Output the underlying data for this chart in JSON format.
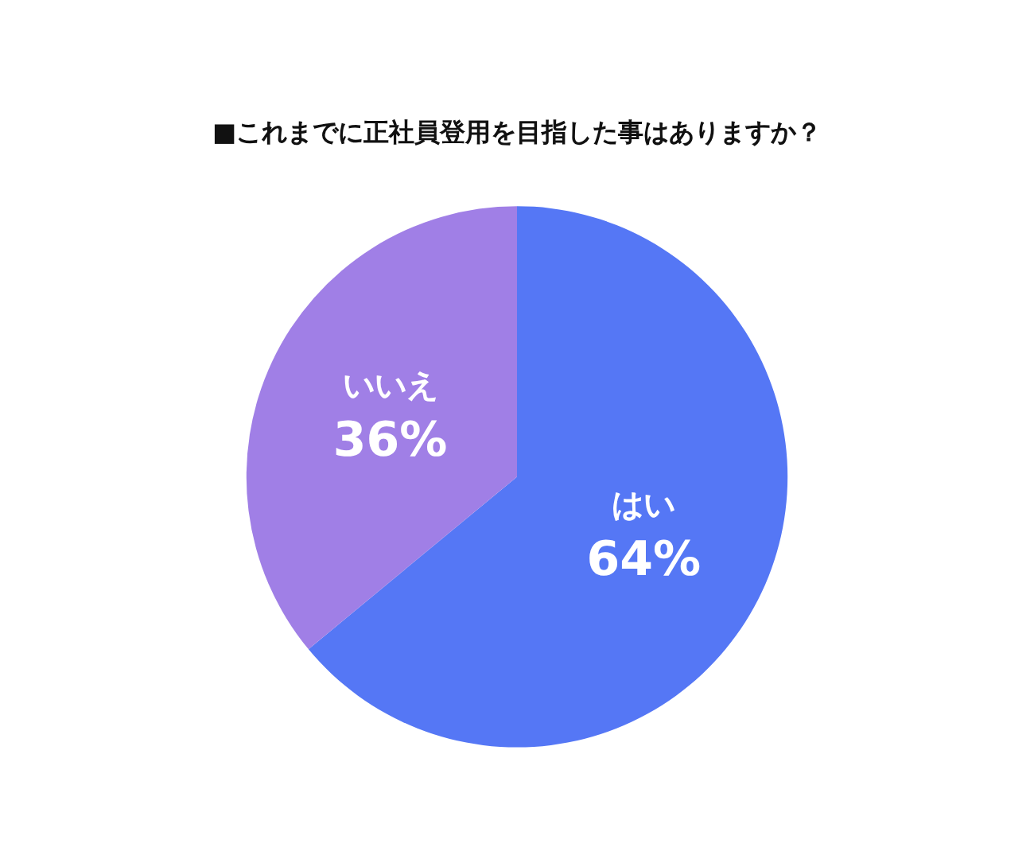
{
  "chart_data": {
    "type": "pie",
    "title": "■これまでに正社員登用を目指した事はありますか？",
    "categories": [
      "はい",
      "いいえ"
    ],
    "values": [
      64,
      36
    ],
    "colors": [
      "#5577f5",
      "#a07fe6"
    ],
    "value_labels": [
      "64%",
      "36%"
    ],
    "legend": false
  }
}
